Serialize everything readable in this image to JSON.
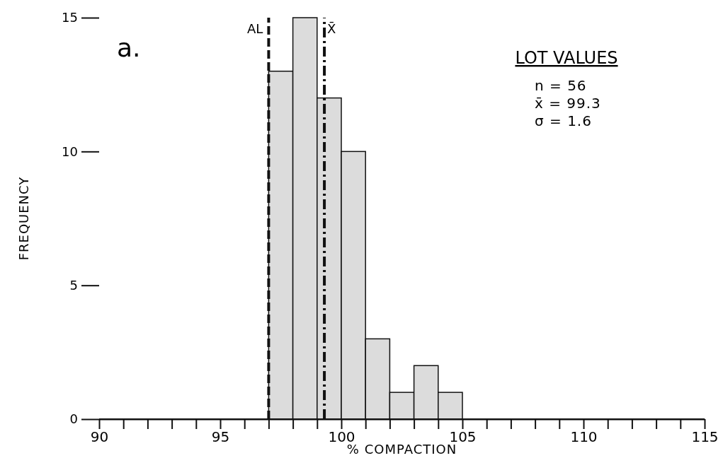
{
  "chart_data": {
    "type": "histogram",
    "xlabel": "% COMPACTION",
    "ylabel": "FREQUENCY",
    "bins": [
      97,
      98,
      99,
      100,
      101,
      102,
      103,
      104,
      105
    ],
    "values": [
      13,
      15,
      12,
      10,
      3,
      1,
      2,
      1
    ],
    "color": "#dcdcdc",
    "xlim": [
      90,
      115
    ],
    "xticks": [
      90,
      {
        "value": 91,
        "label": null
      },
      {
        "value": 92,
        "label": null
      },
      {
        "value": 93,
        "label": null
      },
      {
        "value": 94,
        "label": null
      },
      95,
      {
        "value": 96,
        "label": null
      },
      {
        "value": 97,
        "label": null
      },
      {
        "value": 98,
        "label": null
      },
      {
        "value": 99,
        "label": null
      },
      100,
      {
        "value": 101,
        "label": null
      },
      {
        "value": 102,
        "label": null
      },
      {
        "value": 103,
        "label": null
      },
      {
        "value": 104,
        "label": null
      },
      105,
      {
        "value": 106,
        "label": null
      },
      {
        "value": 107,
        "label": null
      },
      {
        "value": 108,
        "label": null
      },
      {
        "value": 109,
        "label": null
      },
      110,
      {
        "value": 111,
        "label": null
      },
      {
        "value": 112,
        "label": null
      },
      {
        "value": 113,
        "label": null
      },
      {
        "value": 114,
        "label": null
      },
      115
    ],
    "ylim": [
      0,
      15
    ],
    "yticks": [
      0,
      5,
      10,
      15
    ],
    "ref_lines": [
      {
        "axis": "x",
        "value": 97,
        "label": "AL",
        "line_style": "dashed"
      },
      {
        "axis": "x",
        "value": 99.3,
        "label": "X̄",
        "line_style": "dashdot"
      }
    ],
    "annotations": [
      "a.",
      "LOT VALUES",
      "n = 56",
      "x̄ = 99.3",
      "σ = 1.6"
    ]
  }
}
